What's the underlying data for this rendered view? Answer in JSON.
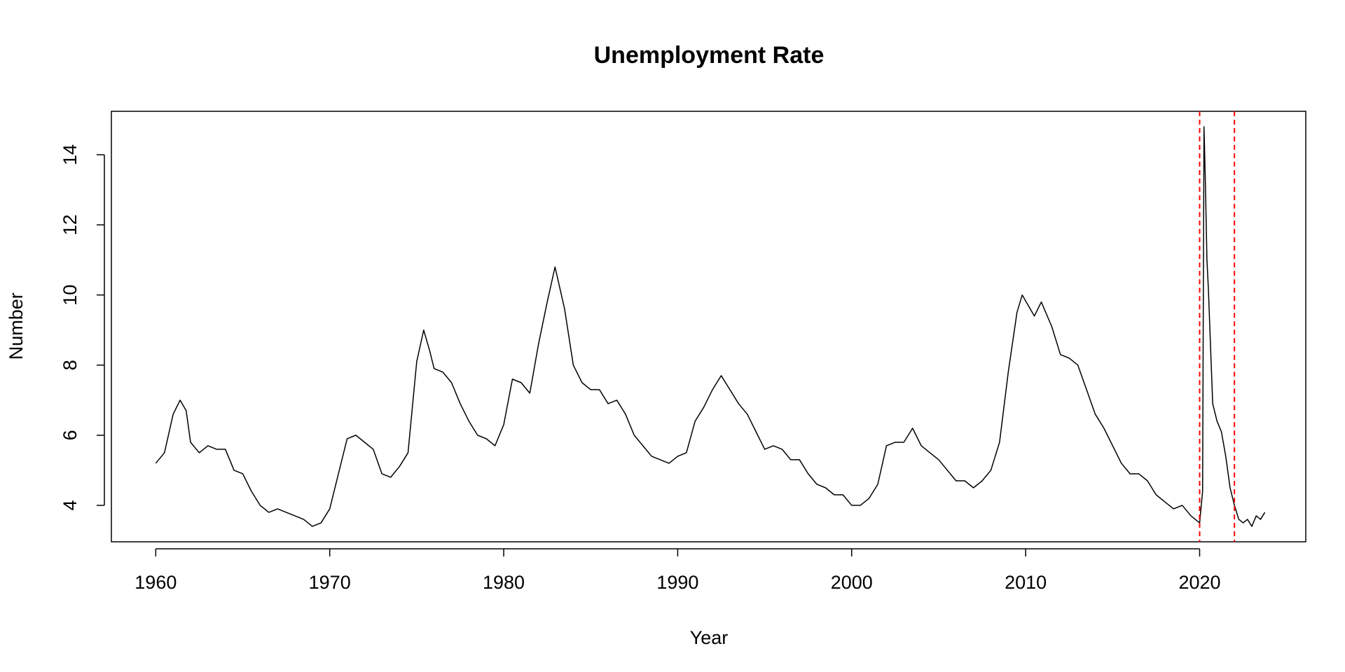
{
  "chart_data": {
    "type": "line",
    "title": "Unemployment Rate",
    "xlabel": "Year",
    "ylabel": "Number",
    "x": [
      1960.0,
      1960.5,
      1961.0,
      1961.4,
      1961.75,
      1962.0,
      1962.5,
      1963.0,
      1963.5,
      1964.0,
      1964.5,
      1965.0,
      1965.5,
      1966.0,
      1966.5,
      1967.0,
      1967.5,
      1968.0,
      1968.5,
      1969.0,
      1969.5,
      1970.0,
      1970.5,
      1971.0,
      1971.5,
      1972.0,
      1972.5,
      1973.0,
      1973.5,
      1974.0,
      1974.5,
      1975.0,
      1975.4,
      1975.75,
      1976.0,
      1976.5,
      1977.0,
      1977.5,
      1978.0,
      1978.5,
      1979.0,
      1979.5,
      1980.0,
      1980.5,
      1981.0,
      1981.5,
      1982.0,
      1982.5,
      1982.95,
      1983.5,
      1984.0,
      1984.5,
      1985.0,
      1985.5,
      1986.0,
      1986.5,
      1987.0,
      1987.5,
      1988.0,
      1988.5,
      1989.0,
      1989.5,
      1990.0,
      1990.5,
      1991.0,
      1991.5,
      1992.0,
      1992.5,
      1993.0,
      1993.5,
      1994.0,
      1994.5,
      1995.0,
      1995.5,
      1996.0,
      1996.5,
      1997.0,
      1997.5,
      1998.0,
      1998.5,
      1999.0,
      1999.5,
      2000.0,
      2000.5,
      2001.0,
      2001.5,
      2002.0,
      2002.5,
      2003.0,
      2003.5,
      2004.0,
      2004.5,
      2005.0,
      2005.5,
      2006.0,
      2006.5,
      2007.0,
      2007.5,
      2008.0,
      2008.5,
      2009.0,
      2009.5,
      2009.8,
      2010.5,
      2010.9,
      2011.5,
      2012.0,
      2012.5,
      2013.0,
      2013.5,
      2014.0,
      2014.5,
      2015.0,
      2015.5,
      2016.0,
      2016.5,
      2017.0,
      2017.5,
      2018.0,
      2018.5,
      2019.0,
      2019.5,
      2020.0,
      2020.17,
      2020.25,
      2020.33,
      2020.42,
      2020.5,
      2020.75,
      2021.0,
      2021.25,
      2021.5,
      2021.75,
      2022.0,
      2022.25,
      2022.5,
      2022.75,
      2023.0,
      2023.25,
      2023.5,
      2023.75
    ],
    "values": [
      5.2,
      5.5,
      6.6,
      7.0,
      6.7,
      5.8,
      5.5,
      5.7,
      5.6,
      5.6,
      5.0,
      4.9,
      4.4,
      4.0,
      3.8,
      3.9,
      3.8,
      3.7,
      3.6,
      3.4,
      3.5,
      3.9,
      4.9,
      5.9,
      6.0,
      5.8,
      5.6,
      4.9,
      4.8,
      5.1,
      5.5,
      8.1,
      9.0,
      8.4,
      7.9,
      7.8,
      7.5,
      6.9,
      6.4,
      6.0,
      5.9,
      5.7,
      6.3,
      7.6,
      7.5,
      7.2,
      8.6,
      9.8,
      10.8,
      9.6,
      8.0,
      7.5,
      7.3,
      7.3,
      6.9,
      7.0,
      6.6,
      6.0,
      5.7,
      5.4,
      5.3,
      5.2,
      5.4,
      5.5,
      6.4,
      6.8,
      7.3,
      7.7,
      7.3,
      6.9,
      6.6,
      6.1,
      5.6,
      5.7,
      5.6,
      5.3,
      5.3,
      4.9,
      4.6,
      4.5,
      4.3,
      4.3,
      4.0,
      4.0,
      4.2,
      4.6,
      5.7,
      5.8,
      5.8,
      6.2,
      5.7,
      5.5,
      5.3,
      5.0,
      4.7,
      4.7,
      4.5,
      4.7,
      5.0,
      5.8,
      7.8,
      9.5,
      10.0,
      9.4,
      9.8,
      9.1,
      8.3,
      8.2,
      8.0,
      7.3,
      6.6,
      6.2,
      5.7,
      5.2,
      4.9,
      4.9,
      4.7,
      4.3,
      4.1,
      3.9,
      4.0,
      3.7,
      3.5,
      4.4,
      14.8,
      13.2,
      11.0,
      10.2,
      6.9,
      6.4,
      6.1,
      5.4,
      4.5,
      4.0,
      3.6,
      3.5,
      3.6,
      3.4,
      3.7,
      3.6,
      3.8
    ],
    "color": "#000000",
    "xlim": [
      1957.45,
      2026.1
    ],
    "xticks": [
      1960,
      1970,
      1980,
      1990,
      2000,
      2010,
      2020
    ],
    "ylim": [
      2.96,
      15.24
    ],
    "yticks": [
      4,
      6,
      8,
      10,
      12,
      14
    ],
    "vlines": [
      2020,
      2022
    ],
    "vline_color": "#ff0000"
  }
}
